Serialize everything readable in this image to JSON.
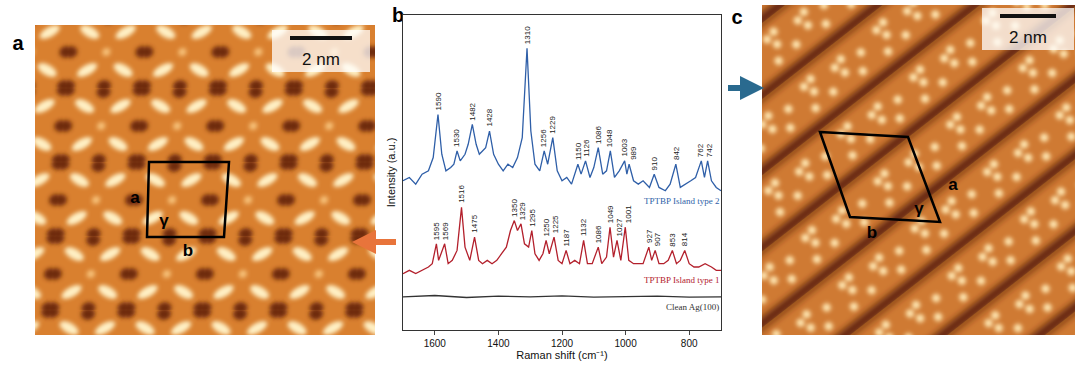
{
  "chart_data": {
    "type": "line",
    "x_label": "Raman shift (cm⁻¹)",
    "y_label": "Intensity (a.u.)",
    "xlim": [
      1700,
      700
    ],
    "xticks": [
      1600,
      1400,
      1200,
      1000,
      800
    ],
    "ylim": [
      10,
      105
    ],
    "tick_labels": "x",
    "grid": false,
    "series": [
      {
        "name": "TPTBP Island type 2",
        "color": "#2f5fa8",
        "x": [
          1700,
          1680,
          1660,
          1640,
          1620,
          1605,
          1590,
          1578,
          1565,
          1550,
          1540,
          1530,
          1520,
          1505,
          1495,
          1482,
          1470,
          1460,
          1450,
          1440,
          1428,
          1415,
          1400,
          1385,
          1370,
          1355,
          1340,
          1325,
          1310,
          1298,
          1285,
          1270,
          1256,
          1245,
          1229,
          1215,
          1200,
          1185,
          1170,
          1160,
          1150,
          1140,
          1126,
          1112,
          1100,
          1086,
          1072,
          1060,
          1048,
          1035,
          1020,
          1003,
          996,
          989,
          975,
          960,
          945,
          925,
          910,
          895,
          875,
          860,
          842,
          828,
          810,
          795,
          780,
          762,
          752,
          742,
          730,
          715,
          700
        ],
        "values": [
          55,
          56,
          54,
          57,
          58,
          62,
          75,
          63,
          58,
          59,
          60,
          64,
          61,
          63,
          66,
          72,
          66,
          63,
          64,
          65,
          70,
          63,
          60,
          58,
          60,
          59,
          62,
          68,
          95,
          70,
          60,
          58,
          64,
          60,
          68,
          58,
          55,
          56,
          54,
          57,
          60,
          57,
          61,
          56,
          59,
          65,
          57,
          58,
          64,
          56,
          58,
          61,
          57,
          60,
          55,
          54,
          55,
          53,
          57,
          53,
          52,
          54,
          60,
          53,
          54,
          55,
          56,
          61,
          56,
          61,
          55,
          53,
          52
        ],
        "peaks": [
          1590,
          1530,
          1482,
          1428,
          1310,
          1256,
          1229,
          1150,
          1126,
          1086,
          1048,
          1003,
          989,
          910,
          842,
          762,
          742
        ]
      },
      {
        "name": "TPTBP Island type 1",
        "color": "#b3202c",
        "x": [
          1700,
          1680,
          1660,
          1640,
          1620,
          1608,
          1595,
          1588,
          1580,
          1569,
          1558,
          1545,
          1530,
          1516,
          1505,
          1490,
          1475,
          1462,
          1450,
          1435,
          1420,
          1405,
          1390,
          1375,
          1362,
          1350,
          1340,
          1329,
          1318,
          1305,
          1295,
          1285,
          1272,
          1260,
          1250,
          1240,
          1225,
          1212,
          1200,
          1187,
          1175,
          1160,
          1145,
          1132,
          1120,
          1105,
          1086,
          1075,
          1060,
          1049,
          1038,
          1027,
          1015,
          1001,
          990,
          975,
          960,
          945,
          927,
          918,
          907,
          895,
          880,
          866,
          853,
          840,
          828,
          814,
          800,
          785,
          770,
          750,
          730,
          715,
          700
        ],
        "values": [
          27,
          28,
          27,
          28,
          29,
          30,
          36,
          31,
          33,
          36,
          30,
          31,
          34,
          47,
          35,
          31,
          38,
          31,
          30,
          31,
          30,
          31,
          33,
          35,
          40,
          43,
          40,
          42,
          36,
          35,
          40,
          33,
          31,
          33,
          37,
          33,
          38,
          31,
          30,
          34,
          30,
          31,
          30,
          37,
          30,
          30,
          35,
          30,
          32,
          41,
          32,
          37,
          31,
          41,
          31,
          30,
          30,
          30,
          35,
          31,
          34,
          30,
          30,
          31,
          34,
          30,
          31,
          34,
          30,
          29,
          29,
          30,
          29,
          28,
          28
        ],
        "peaks": [
          1595,
          1569,
          1516,
          1475,
          1350,
          1329,
          1295,
          1250,
          1225,
          1187,
          1132,
          1086,
          1049,
          1027,
          1001,
          927,
          907,
          853,
          814
        ]
      },
      {
        "name": "Clean Ag(100)",
        "color": "#333333",
        "x": [
          1700,
          1600,
          1500,
          1400,
          1300,
          1200,
          1100,
          1000,
          900,
          800,
          700
        ],
        "values": [
          20,
          20.4,
          19.8,
          20.2,
          20,
          20.3,
          19.9,
          20.1,
          20.2,
          19.9,
          20
        ]
      }
    ]
  },
  "figure": {
    "panel_labels": [
      "a",
      "b",
      "c"
    ],
    "images": [
      {
        "panel": "a",
        "scale_bar": "2 nm",
        "cell": {
          "a": "a",
          "b": "b",
          "angle": "γ"
        }
      },
      {
        "panel": "c",
        "scale_bar": "2 nm",
        "cell": {
          "a": "a",
          "b": "b",
          "angle": "γ"
        }
      }
    ]
  }
}
